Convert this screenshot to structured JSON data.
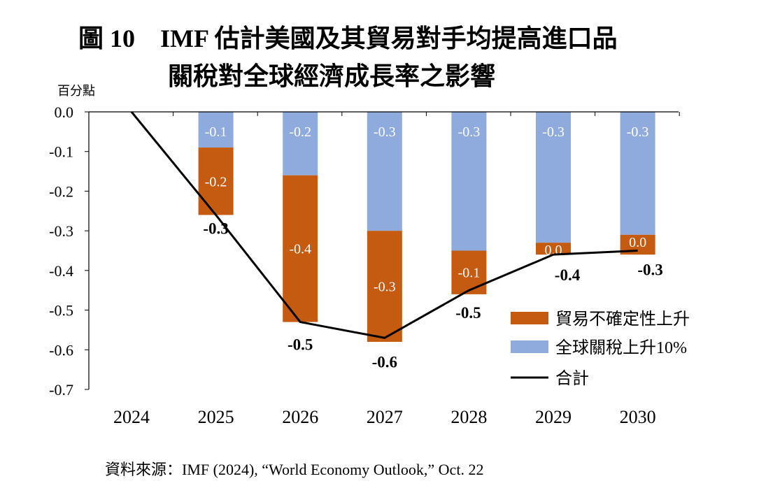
{
  "title": {
    "line1": "圖 10　IMF 估計美國及其貿易對手均提高進口品",
    "line2": "關稅對全球經濟成長率之影響"
  },
  "unit_label": "百分點",
  "source": "資料來源：IMF (2024), “World Economy Outlook,” Oct. 22",
  "colors": {
    "tariff": "#8faadc",
    "uncertainty": "#c55a11",
    "total": "#000000"
  },
  "chart_data": {
    "type": "bar",
    "stacked": true,
    "categories": [
      "2024",
      "2025",
      "2026",
      "2027",
      "2028",
      "2029",
      "2030"
    ],
    "ylim": [
      -0.7,
      0.0
    ],
    "yticks": [
      "0.0",
      "-0.1",
      "-0.2",
      "-0.3",
      "-0.4",
      "-0.5",
      "-0.6",
      "-0.7"
    ],
    "series": [
      {
        "name": "全球關稅上升10%",
        "kind": "bar",
        "values": [
          0.0,
          -0.09,
          -0.16,
          -0.3,
          -0.35,
          -0.33,
          -0.31
        ],
        "labels": [
          "",
          "-0.1",
          "-0.2",
          "-0.3",
          "-0.3",
          "-0.3",
          "-0.3"
        ]
      },
      {
        "name": "貿易不確定性上升",
        "kind": "bar",
        "values": [
          0.0,
          -0.17,
          -0.37,
          -0.28,
          -0.11,
          -0.03,
          -0.05
        ],
        "labels": [
          "",
          "-0.2",
          "-0.4",
          "-0.3",
          "-0.1",
          "0.0",
          "0.0"
        ]
      },
      {
        "name": "合計",
        "kind": "line",
        "values": [
          0.0,
          -0.26,
          -0.53,
          -0.57,
          -0.45,
          -0.36,
          -0.35
        ],
        "labels": [
          "",
          "-0.3",
          "-0.5",
          "-0.6",
          "-0.5",
          "-0.4",
          "-0.3"
        ]
      }
    ],
    "legend": {
      "position": "bottom-right",
      "items": [
        "貿易不確定性上升",
        "全球關稅上升10%",
        "合計"
      ]
    }
  }
}
